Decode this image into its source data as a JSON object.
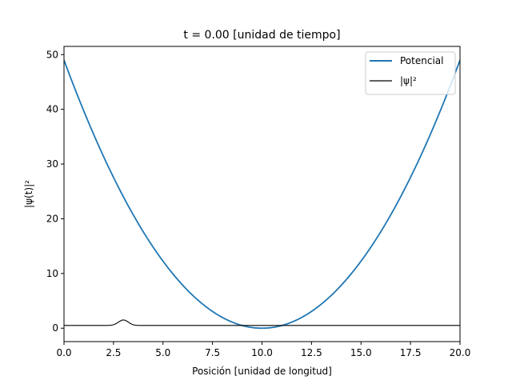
{
  "chart_data": {
    "type": "line",
    "title": "t = 0.00 [unidad de tiempo]",
    "xlabel": "Posición [unidad de longitud]",
    "ylabel": "|ψ(t)|²",
    "xlim": [
      0,
      20
    ],
    "ylim": [
      -2.45,
      51.5
    ],
    "xticks": [
      0,
      2.5,
      5,
      7.5,
      10,
      12.5,
      15,
      17.5,
      20
    ],
    "xtick_labels": [
      "0.0",
      "2.5",
      "5.0",
      "7.5",
      "10.0",
      "12.5",
      "15.0",
      "17.5",
      "20.0"
    ],
    "yticks": [
      0,
      10,
      20,
      30,
      40,
      50
    ],
    "ytick_labels": [
      "0",
      "10",
      "20",
      "30",
      "40",
      "50"
    ],
    "grid": false,
    "legend_position": "top-right",
    "series": [
      {
        "name": "Potencial",
        "color": "#1f77b4",
        "x": [
          0,
          1,
          2,
          3,
          4,
          5,
          6,
          7,
          8,
          9,
          10,
          11,
          12,
          13,
          14,
          15,
          16,
          17,
          18,
          19,
          20
        ],
        "y": [
          49.0,
          40.0,
          32.0,
          24.5,
          18.0,
          12.5,
          8.0,
          4.5,
          2.0,
          0.5,
          0.0,
          0.5,
          2.0,
          4.5,
          8.0,
          12.5,
          18.0,
          24.5,
          32.0,
          40.0,
          49.0
        ]
      },
      {
        "name": "|ψ|²",
        "color": "#000000",
        "x": [
          0,
          2.0,
          2.4,
          2.6,
          2.8,
          3.0,
          3.2,
          3.4,
          3.6,
          4.0,
          20
        ],
        "y": [
          0.5,
          0.5,
          0.65,
          0.95,
          1.35,
          1.5,
          1.3,
          0.9,
          0.6,
          0.5,
          0.5
        ]
      }
    ]
  }
}
